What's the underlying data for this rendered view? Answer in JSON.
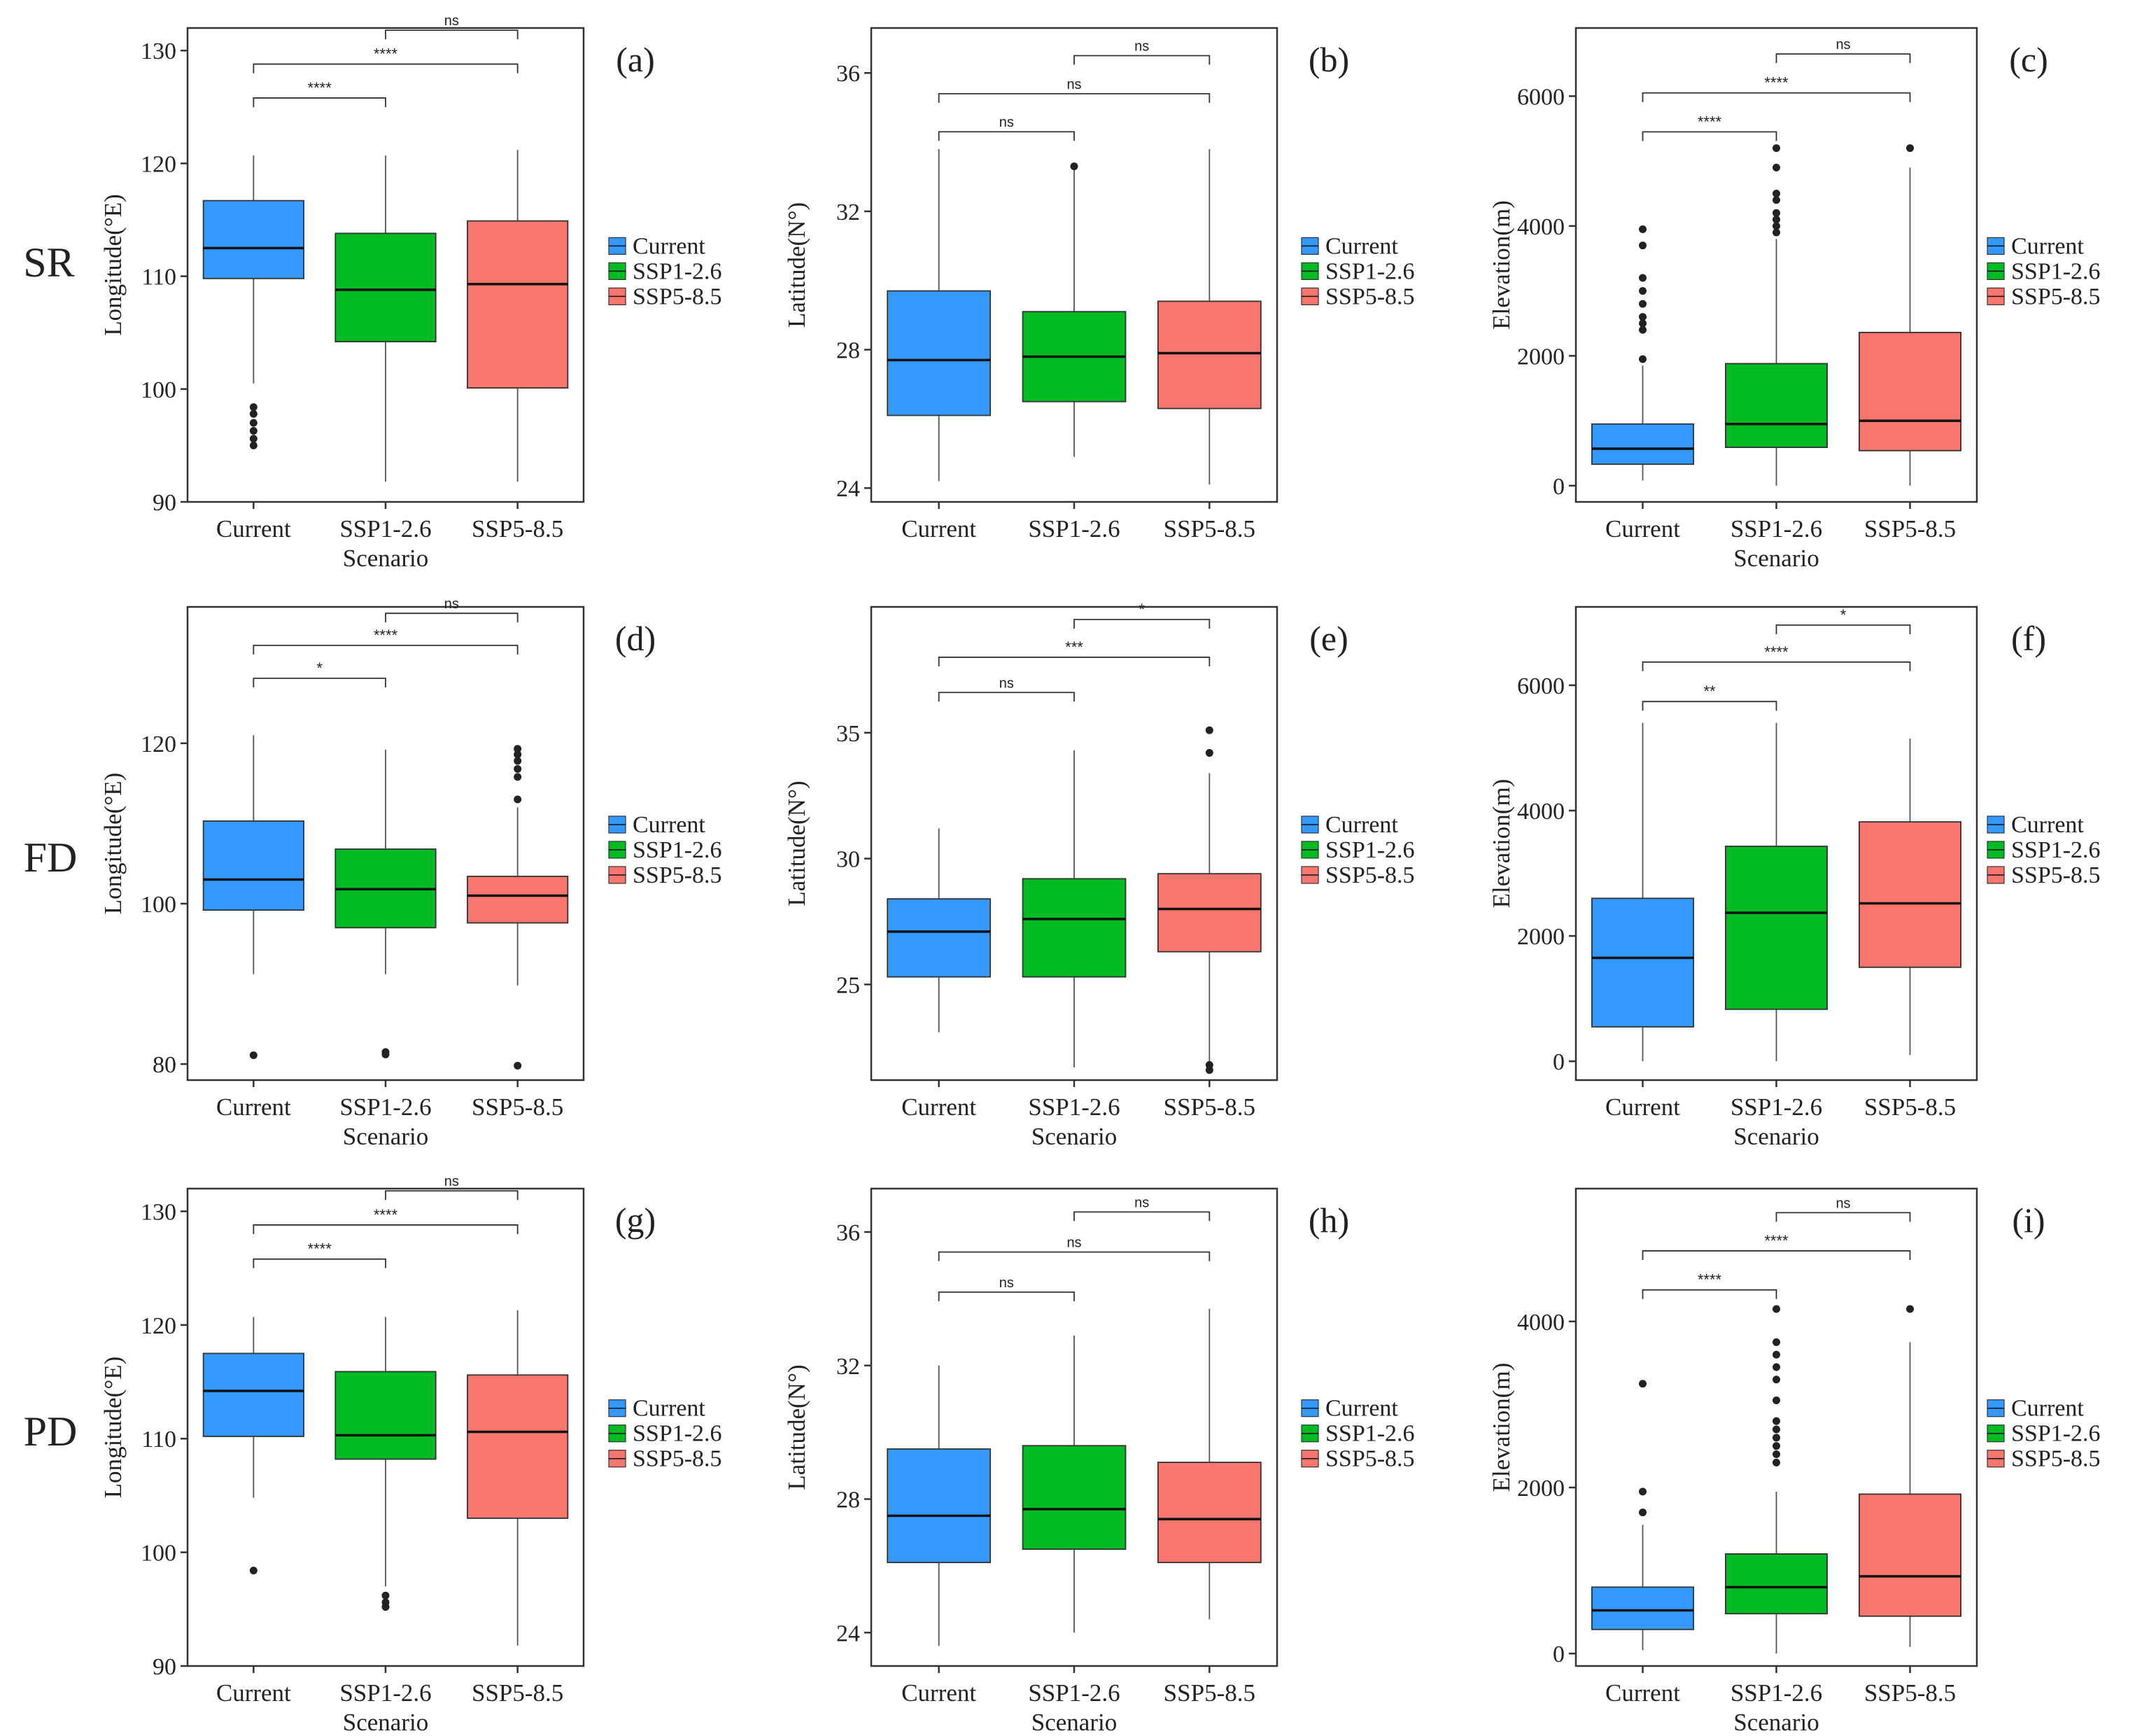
{
  "figure": {
    "row_labels": [
      "SR",
      "FD",
      "PD"
    ],
    "legend_entries": [
      "Current",
      "SSP1-2.6",
      "SSP5-8.5"
    ],
    "colors": {
      "Current": "#3399ff",
      "SSP1-2.6": "#00bb22",
      "SSP5-8.5": "#f8766d"
    }
  },
  "chart_data": [
    {
      "type": "boxplot",
      "panel": "(a)",
      "row": "SR",
      "col": 0,
      "xlabel": "Scenario",
      "ylabel": "Longitude(°E)",
      "ylim": [
        90,
        132
      ],
      "yticks": [
        90,
        100,
        110,
        120,
        130
      ],
      "categories": [
        "Current",
        "SSP1-2.6",
        "SSP5-8.5"
      ],
      "boxes": [
        {
          "min": 100.5,
          "q1": 109.8,
          "median": 112.5,
          "q3": 116.7,
          "max": 120.7,
          "outliers": [
            98.4,
            97.8,
            97.0,
            96.3,
            95.6,
            95.0
          ]
        },
        {
          "min": 91.8,
          "q1": 104.2,
          "median": 108.8,
          "q3": 113.8,
          "max": 120.7,
          "outliers": []
        },
        {
          "min": 91.8,
          "q1": 100.1,
          "median": 109.3,
          "q3": 114.9,
          "max": 121.2,
          "outliers": []
        }
      ],
      "brackets": [
        {
          "from": 0,
          "to": 1,
          "label": "****",
          "y": 125.8
        },
        {
          "from": 0,
          "to": 2,
          "label": "****",
          "y": 128.8
        },
        {
          "from": 1,
          "to": 2,
          "label": "ns",
          "y": 131.8
        }
      ]
    },
    {
      "type": "boxplot",
      "panel": "(b)",
      "row": "SR",
      "col": 1,
      "xlabel": "",
      "ylabel": "Latitude(N°)",
      "ylim": [
        23.6,
        37.3
      ],
      "yticks": [
        24,
        28,
        32,
        36
      ],
      "categories": [
        "Current",
        "SSP1-2.6",
        "SSP5-8.5"
      ],
      "boxes": [
        {
          "min": 24.2,
          "q1": 26.1,
          "median": 27.7,
          "q3": 29.7,
          "max": 33.8,
          "outliers": []
        },
        {
          "min": 24.9,
          "q1": 26.5,
          "median": 27.8,
          "q3": 29.1,
          "max": 33.2,
          "outliers": [
            33.3
          ]
        },
        {
          "min": 24.1,
          "q1": 26.3,
          "median": 27.9,
          "q3": 29.4,
          "max": 33.8,
          "outliers": []
        }
      ],
      "brackets": [
        {
          "from": 0,
          "to": 1,
          "label": "ns",
          "y": 34.3
        },
        {
          "from": 0,
          "to": 2,
          "label": "ns",
          "y": 35.4
        },
        {
          "from": 1,
          "to": 2,
          "label": "ns",
          "y": 36.5
        }
      ]
    },
    {
      "type": "boxplot",
      "panel": "(c)",
      "row": "SR",
      "col": 2,
      "xlabel": "Scenario",
      "ylabel": "Elevation(m)",
      "ylim": [
        -250,
        7050
      ],
      "yticks": [
        0,
        2000,
        4000,
        6000
      ],
      "categories": [
        "Current",
        "SSP1-2.6",
        "SSP5-8.5"
      ],
      "boxes": [
        {
          "min": 80,
          "q1": 330,
          "median": 570,
          "q3": 950,
          "max": 1850,
          "outliers": [
            1950,
            2400,
            2500,
            2600,
            2800,
            3000,
            3200,
            3700,
            3950
          ]
        },
        {
          "min": 0,
          "q1": 590,
          "median": 950,
          "q3": 1880,
          "max": 3800,
          "outliers": [
            3900,
            4000,
            4100,
            4200,
            4400,
            4500,
            4900,
            5200
          ]
        },
        {
          "min": 0,
          "q1": 540,
          "median": 1000,
          "q3": 2360,
          "max": 4900,
          "outliers": [
            5200
          ]
        }
      ],
      "brackets": [
        {
          "from": 0,
          "to": 1,
          "label": "****",
          "y": 5450
        },
        {
          "from": 0,
          "to": 2,
          "label": "****",
          "y": 6050
        },
        {
          "from": 1,
          "to": 2,
          "label": "ns",
          "y": 6650
        }
      ]
    },
    {
      "type": "boxplot",
      "panel": "(d)",
      "row": "FD",
      "col": 0,
      "xlabel": "Scenario",
      "ylabel": "Longitude(°E)",
      "ylim": [
        78,
        137
      ],
      "yticks": [
        80,
        100,
        120
      ],
      "categories": [
        "Current",
        "SSP1-2.6",
        "SSP5-8.5"
      ],
      "boxes": [
        {
          "min": 91.2,
          "q1": 99.2,
          "median": 103.0,
          "q3": 110.3,
          "max": 121.0,
          "outliers": [
            81.1
          ]
        },
        {
          "min": 91.2,
          "q1": 97.0,
          "median": 101.8,
          "q3": 106.8,
          "max": 119.2,
          "outliers": [
            81.2,
            81.5
          ]
        },
        {
          "min": 89.8,
          "q1": 97.6,
          "median": 101.0,
          "q3": 103.4,
          "max": 112.0,
          "outliers": [
            79.8,
            113.0,
            115.8,
            116.8,
            117.8,
            118.6,
            119.3
          ]
        }
      ],
      "brackets": [
        {
          "from": 0,
          "to": 1,
          "label": "*",
          "y": 128.1
        },
        {
          "from": 0,
          "to": 2,
          "label": "****",
          "y": 132.2
        },
        {
          "from": 1,
          "to": 2,
          "label": "ns",
          "y": 136.2
        }
      ]
    },
    {
      "type": "boxplot",
      "panel": "(e)",
      "row": "FD",
      "col": 1,
      "xlabel": "Scenario",
      "ylabel": "Latitude(N°)",
      "ylim": [
        21.2,
        40
      ],
      "yticks": [
        25,
        30,
        35
      ],
      "categories": [
        "Current",
        "SSP1-2.6",
        "SSP5-8.5"
      ],
      "boxes": [
        {
          "min": 23.1,
          "q1": 25.3,
          "median": 27.1,
          "q3": 28.4,
          "max": 31.2,
          "outliers": []
        },
        {
          "min": 21.7,
          "q1": 25.3,
          "median": 27.6,
          "q3": 29.2,
          "max": 34.3,
          "outliers": []
        },
        {
          "min": 21.8,
          "q1": 26.3,
          "median": 28.0,
          "q3": 29.4,
          "max": 33.4,
          "outliers": [
            21.6,
            21.8,
            34.2,
            35.1
          ]
        }
      ],
      "brackets": [
        {
          "from": 0,
          "to": 1,
          "label": "ns",
          "y": 36.6
        },
        {
          "from": 0,
          "to": 2,
          "label": "***",
          "y": 38.0
        },
        {
          "from": 1,
          "to": 2,
          "label": "*",
          "y": 39.5
        }
      ]
    },
    {
      "type": "boxplot",
      "panel": "(f)",
      "row": "FD",
      "col": 2,
      "xlabel": "Scenario",
      "ylabel": "Elevation(m)",
      "ylim": [
        -300,
        7250
      ],
      "yticks": [
        0,
        2000,
        4000,
        6000
      ],
      "categories": [
        "Current",
        "SSP1-2.6",
        "SSP5-8.5"
      ],
      "boxes": [
        {
          "min": 0,
          "q1": 550,
          "median": 1650,
          "q3": 2600,
          "max": 5400,
          "outliers": []
        },
        {
          "min": 0,
          "q1": 830,
          "median": 2370,
          "q3": 3430,
          "max": 5400,
          "outliers": []
        },
        {
          "min": 100,
          "q1": 1500,
          "median": 2520,
          "q3": 3820,
          "max": 5150,
          "outliers": []
        }
      ],
      "brackets": [
        {
          "from": 0,
          "to": 1,
          "label": "**",
          "y": 5740
        },
        {
          "from": 0,
          "to": 2,
          "label": "****",
          "y": 6370
        },
        {
          "from": 1,
          "to": 2,
          "label": "*",
          "y": 6960
        }
      ]
    },
    {
      "type": "boxplot",
      "panel": "(g)",
      "row": "PD",
      "col": 0,
      "xlabel": "Scenario",
      "ylabel": "Longitude(°E)",
      "ylim": [
        90,
        132
      ],
      "yticks": [
        90,
        100,
        110,
        120,
        130
      ],
      "categories": [
        "Current",
        "SSP1-2.6",
        "SSP5-8.5"
      ],
      "boxes": [
        {
          "min": 104.8,
          "q1": 110.2,
          "median": 114.2,
          "q3": 117.5,
          "max": 120.7,
          "outliers": [
            98.4
          ]
        },
        {
          "min": 97.0,
          "q1": 108.2,
          "median": 110.3,
          "q3": 115.9,
          "max": 120.7,
          "outliers": [
            96.2,
            95.6,
            95.2
          ]
        },
        {
          "min": 91.8,
          "q1": 103.0,
          "median": 110.6,
          "q3": 115.6,
          "max": 121.3,
          "outliers": []
        }
      ],
      "brackets": [
        {
          "from": 0,
          "to": 1,
          "label": "****",
          "y": 125.8
        },
        {
          "from": 0,
          "to": 2,
          "label": "****",
          "y": 128.8
        },
        {
          "from": 1,
          "to": 2,
          "label": "ns",
          "y": 131.8
        }
      ]
    },
    {
      "type": "boxplot",
      "panel": "(h)",
      "row": "PD",
      "col": 1,
      "xlabel": "Scenario",
      "ylabel": "Latitude(N°)",
      "ylim": [
        23.0,
        37.3
      ],
      "yticks": [
        24,
        28,
        32,
        36
      ],
      "categories": [
        "Current",
        "SSP1-2.6",
        "SSP5-8.5"
      ],
      "boxes": [
        {
          "min": 23.6,
          "q1": 26.1,
          "median": 27.5,
          "q3": 29.5,
          "max": 32.0,
          "outliers": []
        },
        {
          "min": 24.0,
          "q1": 26.5,
          "median": 27.7,
          "q3": 29.6,
          "max": 32.9,
          "outliers": []
        },
        {
          "min": 24.4,
          "q1": 26.1,
          "median": 27.4,
          "q3": 29.1,
          "max": 33.7,
          "outliers": []
        }
      ],
      "brackets": [
        {
          "from": 0,
          "to": 1,
          "label": "ns",
          "y": 34.2
        },
        {
          "from": 0,
          "to": 2,
          "label": "ns",
          "y": 35.4
        },
        {
          "from": 1,
          "to": 2,
          "label": "ns",
          "y": 36.6
        }
      ]
    },
    {
      "type": "boxplot",
      "panel": "(i)",
      "row": "PD",
      "col": 2,
      "xlabel": "Scenario",
      "ylabel": "Elevation(m)",
      "ylim": [
        -150,
        5600
      ],
      "yticks": [
        0,
        2000,
        4000
      ],
      "categories": [
        "Current",
        "SSP1-2.6",
        "SSP5-8.5"
      ],
      "boxes": [
        {
          "min": 40,
          "q1": 290,
          "median": 520,
          "q3": 800,
          "max": 1550,
          "outliers": [
            1700,
            1950,
            3250
          ]
        },
        {
          "min": 0,
          "q1": 480,
          "median": 800,
          "q3": 1200,
          "max": 1950,
          "outliers": [
            2300,
            2400,
            2500,
            2600,
            2700,
            2800,
            3050,
            3300,
            3450,
            3600,
            3750,
            4150
          ]
        },
        {
          "min": 80,
          "q1": 450,
          "median": 930,
          "q3": 1920,
          "max": 3750,
          "outliers": [
            4150
          ]
        }
      ],
      "brackets": [
        {
          "from": 0,
          "to": 1,
          "label": "****",
          "y": 4380
        },
        {
          "from": 0,
          "to": 2,
          "label": "****",
          "y": 4850
        },
        {
          "from": 1,
          "to": 2,
          "label": "ns",
          "y": 5310
        }
      ]
    }
  ]
}
